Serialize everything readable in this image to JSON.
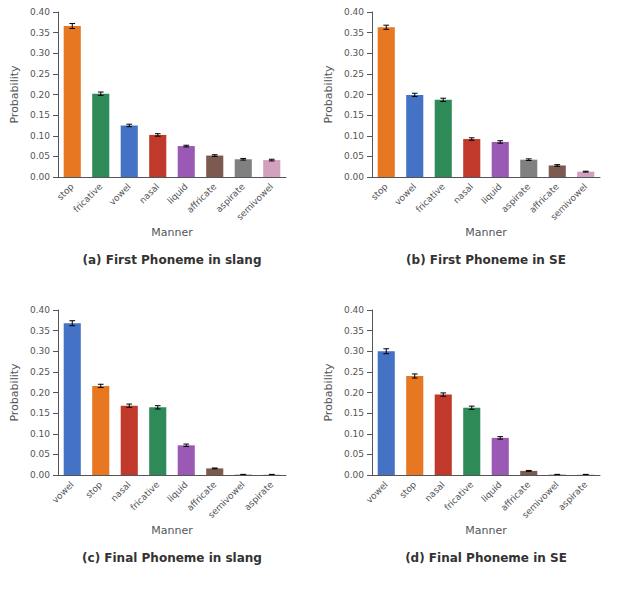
{
  "chart_data": [
    {
      "type": "bar",
      "title": "(a) First Phoneme in slang",
      "categories": [
        "stop",
        "fricative",
        "vowel",
        "nasal",
        "liquid",
        "affricate",
        "aspirate",
        "semivowel"
      ],
      "values": [
        0.366,
        0.202,
        0.125,
        0.102,
        0.075,
        0.052,
        0.043,
        0.041
      ],
      "errors": [
        0.006,
        0.004,
        0.003,
        0.003,
        0.002,
        0.002,
        0.002,
        0.002
      ],
      "colors": [
        "#E87722",
        "#2E8B57",
        "#4472C4",
        "#C0392B",
        "#9B59B6",
        "#7D5A4F",
        "#808080",
        "#D4A0C0"
      ],
      "xlabel": "Manner",
      "ylabel": "Probability",
      "ylim": [
        0,
        0.4
      ],
      "yticks": [
        {
          "value": 0,
          "label": "0.00"
        },
        0.05,
        {
          "value": 0.1,
          "label": "0.10"
        },
        0.15,
        {
          "value": 0.2,
          "label": "0.20"
        },
        0.25,
        {
          "value": 0.3,
          "label": "0.30"
        },
        0.35,
        {
          "value": 0.4,
          "label": "0.40"
        }
      ],
      "grid": false
    },
    {
      "type": "bar",
      "title": "(b) First Phoneme in SE",
      "categories": [
        "stop",
        "vowel",
        "fricative",
        "nasal",
        "liquid",
        "aspirate",
        "affricate",
        "semivowel"
      ],
      "values": [
        0.363,
        0.199,
        0.187,
        0.092,
        0.085,
        0.042,
        0.028,
        0.013
      ],
      "errors": [
        0.005,
        0.004,
        0.004,
        0.003,
        0.003,
        0.002,
        0.002,
        0.001
      ],
      "colors": [
        "#E87722",
        "#4472C4",
        "#2E8B57",
        "#C0392B",
        "#9B59B6",
        "#808080",
        "#7D5A4F",
        "#D4A0C0"
      ],
      "xlabel": "Manner",
      "ylabel": "Probability",
      "ylim": [
        0,
        0.4
      ],
      "yticks": [
        {
          "value": 0,
          "label": "0.00"
        },
        0.05,
        {
          "value": 0.1,
          "label": "0.10"
        },
        0.15,
        {
          "value": 0.2,
          "label": "0.20"
        },
        0.25,
        {
          "value": 0.3,
          "label": "0.30"
        },
        0.35,
        {
          "value": 0.4,
          "label": "0.40"
        }
      ],
      "grid": false
    },
    {
      "type": "bar",
      "title": "(c) Final Phoneme in slang",
      "categories": [
        "vowel",
        "stop",
        "nasal",
        "fricative",
        "liquid",
        "affricate",
        "semivowel",
        "aspirate"
      ],
      "values": [
        0.368,
        0.216,
        0.168,
        0.164,
        0.072,
        0.016,
        0.001,
        0.001
      ],
      "errors": [
        0.006,
        0.004,
        0.004,
        0.004,
        0.003,
        0.001,
        0.0005,
        0.0005
      ],
      "colors": [
        "#4472C4",
        "#E87722",
        "#C0392B",
        "#2E8B57",
        "#9B59B6",
        "#7D5A4F",
        "#808080",
        "#D4A0C0"
      ],
      "xlabel": "Manner",
      "ylabel": "Probability",
      "ylim": [
        0,
        0.4
      ],
      "yticks": [
        {
          "value": 0,
          "label": "0.00"
        },
        0.05,
        {
          "value": 0.1,
          "label": "0.10"
        },
        0.15,
        {
          "value": 0.2,
          "label": "0.20"
        },
        0.25,
        {
          "value": 0.3,
          "label": "0.30"
        },
        0.35,
        {
          "value": 0.4,
          "label": "0.40"
        }
      ],
      "grid": false
    },
    {
      "type": "bar",
      "title": "(d) Final Phoneme in SE",
      "categories": [
        "vowel",
        "stop",
        "nasal",
        "fricative",
        "liquid",
        "affricate",
        "semivowel",
        "aspirate"
      ],
      "values": [
        0.3,
        0.24,
        0.195,
        0.163,
        0.09,
        0.01,
        0.001,
        0.001
      ],
      "errors": [
        0.006,
        0.005,
        0.004,
        0.004,
        0.003,
        0.001,
        0.0005,
        0.0005
      ],
      "colors": [
        "#4472C4",
        "#E87722",
        "#C0392B",
        "#2E8B57",
        "#9B59B6",
        "#7D5A4F",
        "#808080",
        "#D4A0C0"
      ],
      "xlabel": "Manner",
      "ylabel": "Probability",
      "ylim": [
        0,
        0.4
      ],
      "yticks": [
        {
          "value": 0,
          "label": "0.00"
        },
        0.05,
        {
          "value": 0.1,
          "label": "0.10"
        },
        0.15,
        {
          "value": 0.2,
          "label": "0.20"
        },
        0.25,
        {
          "value": 0.3,
          "label": "0.30"
        },
        0.35,
        {
          "value": 0.4,
          "label": "0.40"
        }
      ],
      "grid": false
    }
  ]
}
